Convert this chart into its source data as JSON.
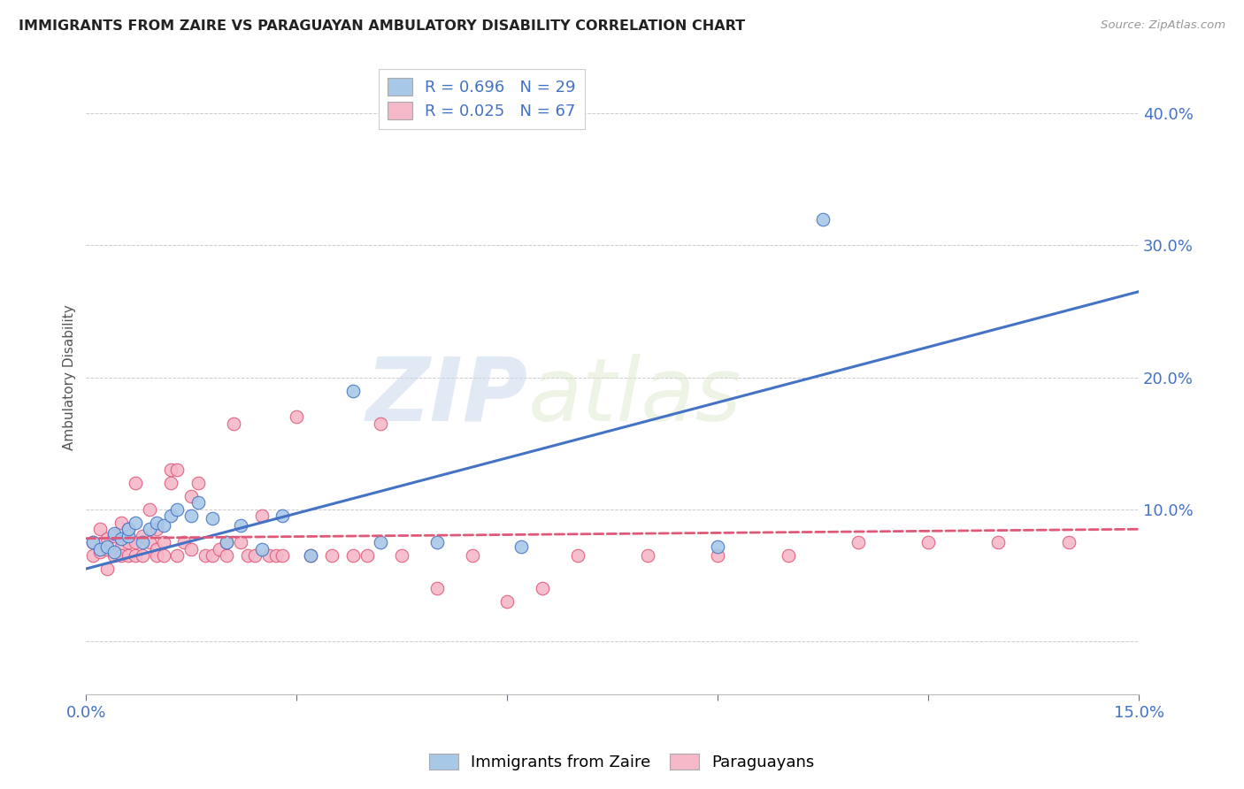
{
  "title": "IMMIGRANTS FROM ZAIRE VS PARAGUAYAN AMBULATORY DISABILITY CORRELATION CHART",
  "source": "Source: ZipAtlas.com",
  "ylabel": "Ambulatory Disability",
  "xlim": [
    0.0,
    0.15
  ],
  "ylim": [
    -0.04,
    0.44
  ],
  "blue_R": "0.696",
  "blue_N": "29",
  "pink_R": "0.025",
  "pink_N": "67",
  "blue_color": "#a8c8e8",
  "pink_color": "#f4b8c8",
  "blue_line_color": "#4472c4",
  "pink_line_color": "#e05878",
  "legend_label_blue": "Immigrants from Zaire",
  "legend_label_pink": "Paraguayans",
  "watermark_zip": "ZIP",
  "watermark_atlas": "atlas",
  "blue_scatter_x": [
    0.001,
    0.002,
    0.003,
    0.004,
    0.004,
    0.005,
    0.006,
    0.006,
    0.007,
    0.008,
    0.009,
    0.01,
    0.011,
    0.012,
    0.013,
    0.015,
    0.016,
    0.018,
    0.02,
    0.022,
    0.025,
    0.028,
    0.032,
    0.038,
    0.042,
    0.05,
    0.062,
    0.09,
    0.105
  ],
  "blue_scatter_y": [
    0.075,
    0.07,
    0.072,
    0.068,
    0.082,
    0.078,
    0.08,
    0.085,
    0.09,
    0.075,
    0.085,
    0.09,
    0.088,
    0.095,
    0.1,
    0.095,
    0.105,
    0.093,
    0.075,
    0.088,
    0.07,
    0.095,
    0.065,
    0.19,
    0.075,
    0.075,
    0.072,
    0.072,
    0.32
  ],
  "pink_scatter_x": [
    0.001,
    0.001,
    0.002,
    0.002,
    0.003,
    0.003,
    0.003,
    0.004,
    0.004,
    0.005,
    0.005,
    0.005,
    0.006,
    0.006,
    0.006,
    0.007,
    0.007,
    0.007,
    0.008,
    0.008,
    0.009,
    0.009,
    0.01,
    0.01,
    0.01,
    0.011,
    0.011,
    0.012,
    0.012,
    0.013,
    0.013,
    0.014,
    0.015,
    0.015,
    0.016,
    0.017,
    0.018,
    0.019,
    0.02,
    0.02,
    0.021,
    0.022,
    0.023,
    0.024,
    0.025,
    0.026,
    0.027,
    0.028,
    0.03,
    0.032,
    0.035,
    0.038,
    0.04,
    0.042,
    0.045,
    0.05,
    0.055,
    0.06,
    0.065,
    0.07,
    0.08,
    0.09,
    0.1,
    0.11,
    0.12,
    0.13,
    0.14
  ],
  "pink_scatter_y": [
    0.075,
    0.065,
    0.085,
    0.068,
    0.07,
    0.055,
    0.078,
    0.08,
    0.065,
    0.09,
    0.072,
    0.065,
    0.085,
    0.075,
    0.065,
    0.065,
    0.075,
    0.12,
    0.08,
    0.065,
    0.075,
    0.1,
    0.07,
    0.085,
    0.065,
    0.075,
    0.065,
    0.13,
    0.12,
    0.13,
    0.065,
    0.075,
    0.11,
    0.07,
    0.12,
    0.065,
    0.065,
    0.07,
    0.065,
    0.075,
    0.165,
    0.075,
    0.065,
    0.065,
    0.095,
    0.065,
    0.065,
    0.065,
    0.17,
    0.065,
    0.065,
    0.065,
    0.065,
    0.165,
    0.065,
    0.04,
    0.065,
    0.03,
    0.04,
    0.065,
    0.065,
    0.065,
    0.065,
    0.075,
    0.075,
    0.075,
    0.075
  ],
  "blue_line_x0": 0.0,
  "blue_line_y0": 0.055,
  "blue_line_x1": 0.15,
  "blue_line_y1": 0.265,
  "pink_line_x0": 0.0,
  "pink_line_y0": 0.078,
  "pink_line_x1": 0.15,
  "pink_line_y1": 0.085
}
